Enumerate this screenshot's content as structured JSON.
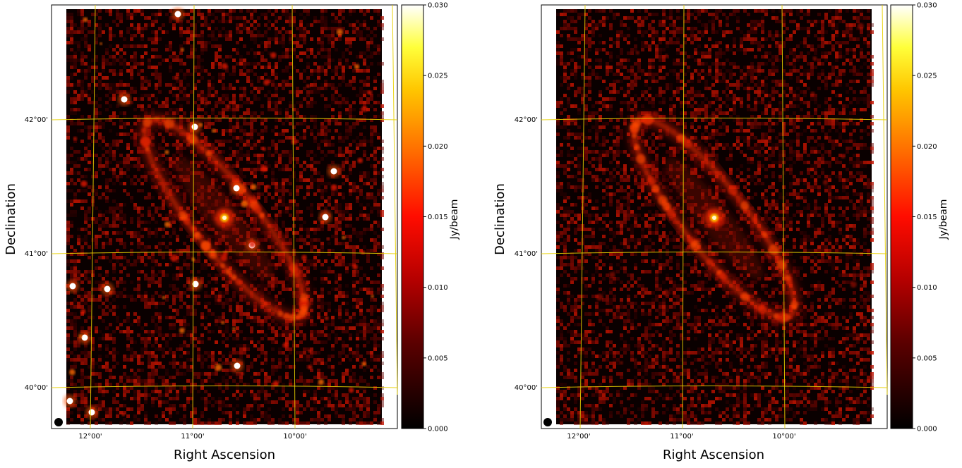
{
  "chart_data": [
    {
      "type": "heatmap",
      "xlabel": "Right Ascension",
      "ylabel": "Declination",
      "x_ticks": [
        "12°00'",
        "11°00'",
        "10°00'"
      ],
      "y_ticks": [
        "42°00'",
        "41°00'",
        "40°00'"
      ],
      "colorbar": {
        "label": "Jy/beam",
        "range": [
          0.0,
          0.03
        ],
        "ticks": [
          "0.000",
          "0.005",
          "0.010",
          "0.015",
          "0.020",
          "0.025",
          "0.030"
        ],
        "colormap": "afmhot"
      },
      "grid": true,
      "grid_color": "#e8d000",
      "has_point_sources": true
    },
    {
      "type": "heatmap",
      "xlabel": "Right Ascension",
      "ylabel": "Declination",
      "x_ticks": [
        "12°00'",
        "11°00'",
        "10°00'"
      ],
      "y_ticks": [
        "42°00'",
        "41°00'",
        "40°00'"
      ],
      "colorbar": {
        "label": "Jy/beam",
        "range": [
          0.0,
          0.03
        ],
        "ticks": [
          "0.000",
          "0.005",
          "0.010",
          "0.015",
          "0.020",
          "0.025",
          "0.030"
        ],
        "colormap": "afmhot"
      },
      "grid": true,
      "grid_color": "#e8d000",
      "has_point_sources": false
    }
  ]
}
